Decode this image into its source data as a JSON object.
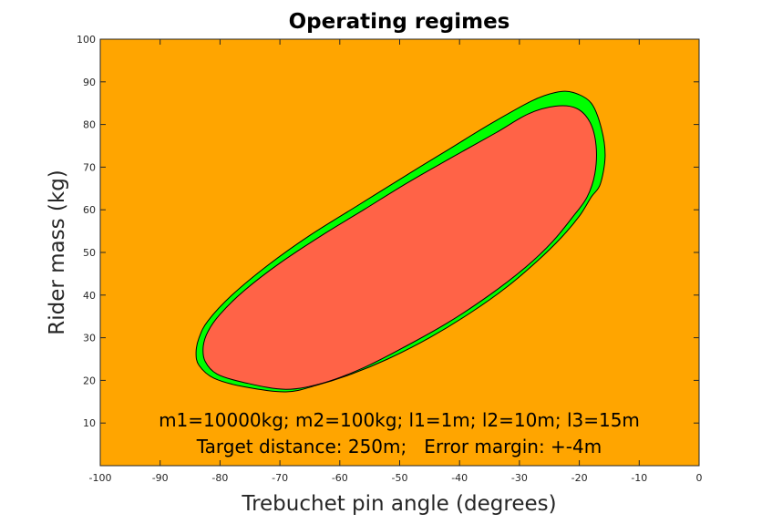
{
  "chart_data": {
    "type": "area",
    "title": "Operating regimes",
    "xlabel": "Trebuchet pin angle (degrees)",
    "ylabel": "Rider mass (kg)",
    "xlim": [
      -100,
      0
    ],
    "ylim": [
      0,
      100
    ],
    "xticks": [
      -100,
      -90,
      -80,
      -70,
      -60,
      -50,
      -40,
      -30,
      -20,
      -10,
      0
    ],
    "yticks": [
      10,
      20,
      30,
      40,
      50,
      60,
      70,
      80,
      90,
      100
    ],
    "grid": false,
    "colors": {
      "background_region": "#FFA500",
      "outer_region": "#00FF00",
      "inner_region": "#FF6347",
      "outline": "#000000"
    },
    "regions": [
      {
        "name": "outer",
        "color": "#00FF00",
        "boundary": [
          [
            -69,
            17.3
          ],
          [
            -76,
            18.5
          ],
          [
            -81,
            20.5
          ],
          [
            -83.5,
            23.5
          ],
          [
            -84,
            26.5
          ],
          [
            -83.5,
            30
          ],
          [
            -82,
            34
          ],
          [
            -78,
            40
          ],
          [
            -72,
            47
          ],
          [
            -65,
            54
          ],
          [
            -57,
            61
          ],
          [
            -49,
            68
          ],
          [
            -42,
            74
          ],
          [
            -35,
            80
          ],
          [
            -28,
            85.5
          ],
          [
            -24,
            87.5
          ],
          [
            -21,
            87.5
          ],
          [
            -18,
            85
          ],
          [
            -16.3,
            79
          ],
          [
            -15.7,
            72.5
          ],
          [
            -16.5,
            66
          ],
          [
            -18,
            63
          ],
          [
            -20,
            58.5
          ],
          [
            -23,
            53.5
          ],
          [
            -27,
            48
          ],
          [
            -32,
            42
          ],
          [
            -38,
            36
          ],
          [
            -45,
            30
          ],
          [
            -52,
            25
          ],
          [
            -58,
            21.5
          ],
          [
            -64,
            18.8
          ]
        ]
      },
      {
        "name": "inner",
        "color": "#FF6347",
        "boundary": [
          [
            -69,
            17.9
          ],
          [
            -76,
            19.5
          ],
          [
            -80.5,
            21.5
          ],
          [
            -82.5,
            24.5
          ],
          [
            -82.8,
            28
          ],
          [
            -82,
            31.5
          ],
          [
            -80,
            35.5
          ],
          [
            -76,
            41
          ],
          [
            -70,
            47.5
          ],
          [
            -63,
            54
          ],
          [
            -56,
            60
          ],
          [
            -48.5,
            66.5
          ],
          [
            -41,
            72.5
          ],
          [
            -34,
            78
          ],
          [
            -28.5,
            82.5
          ],
          [
            -24,
            84.3
          ],
          [
            -20.5,
            83.8
          ],
          [
            -18.2,
            80.5
          ],
          [
            -17.2,
            75
          ],
          [
            -17.4,
            68.5
          ],
          [
            -18.7,
            63
          ],
          [
            -21,
            58.5
          ],
          [
            -24.5,
            52.5
          ],
          [
            -29,
            46.5
          ],
          [
            -35,
            40
          ],
          [
            -42,
            33.5
          ],
          [
            -49,
            28
          ],
          [
            -56,
            23
          ],
          [
            -62.5,
            19.5
          ]
        ]
      }
    ],
    "annotations": [
      "m1=10000kg; m2=100kg; l1=1m; l2=10m; l3=15m",
      "Target distance: 250m;   Error margin: +-4m"
    ]
  }
}
